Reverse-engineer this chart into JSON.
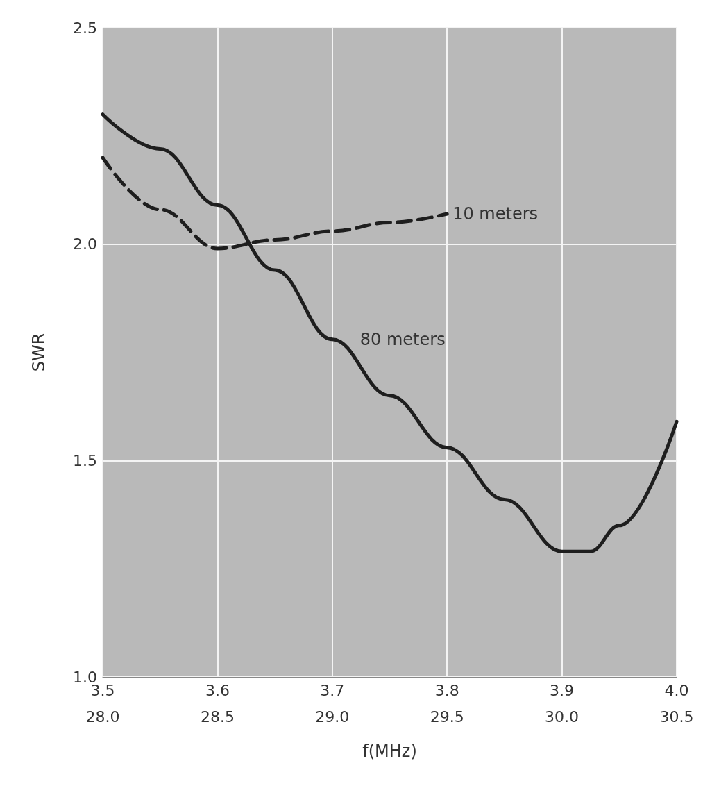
{
  "chart_data": {
    "type": "line",
    "xlabel": "f(MHz)",
    "ylabel": "SWR",
    "xlim": [
      3.5,
      4.0
    ],
    "xticks": [
      {
        "value": 3.5,
        "label": "3.5"
      },
      {
        "value": 3.6,
        "label": "3.6"
      },
      {
        "value": 3.7,
        "label": "3.7"
      },
      {
        "value": 3.8,
        "label": "3.8"
      },
      {
        "value": 3.9,
        "label": "3.9"
      },
      {
        "value": 4.0,
        "label": "4.0"
      }
    ],
    "x2lim": [
      28.0,
      30.5
    ],
    "x2ticks": [
      {
        "value": 28.0,
        "label": "28.0"
      },
      {
        "value": 28.5,
        "label": "28.5"
      },
      {
        "value": 29.0,
        "label": "29.0"
      },
      {
        "value": 29.5,
        "label": "29.5"
      },
      {
        "value": 30.0,
        "label": "30.0"
      },
      {
        "value": 30.5,
        "label": "30.5"
      }
    ],
    "ylim": [
      1.0,
      2.5
    ],
    "yticks": [
      {
        "value": 1.0,
        "label": "1.0"
      },
      {
        "value": 1.5,
        "label": "1.5"
      },
      {
        "value": 2.0,
        "label": "2.0"
      },
      {
        "value": 2.5,
        "label": "2.5"
      }
    ],
    "grid": true,
    "legend": false,
    "marker": "none",
    "series": [
      {
        "name": "80 meters",
        "color": "#1e1e1e",
        "line_style": "solid",
        "x": [
          3.5,
          3.55,
          3.6,
          3.65,
          3.7,
          3.75,
          3.8,
          3.85,
          3.9,
          3.925,
          3.95,
          4.0
        ],
        "values": [
          2.3,
          2.22,
          2.09,
          1.94,
          1.78,
          1.65,
          1.53,
          1.41,
          1.29,
          1.29,
          1.35,
          1.59
        ]
      },
      {
        "name": "10 meters",
        "color": "#1e1e1e",
        "line_style": "dashed",
        "axis": "x2",
        "x": [
          28.0,
          28.25,
          28.5,
          28.75,
          29.0,
          29.25,
          29.5
        ],
        "values": [
          2.2,
          2.08,
          1.99,
          2.01,
          2.03,
          2.05,
          2.07
        ]
      }
    ]
  }
}
